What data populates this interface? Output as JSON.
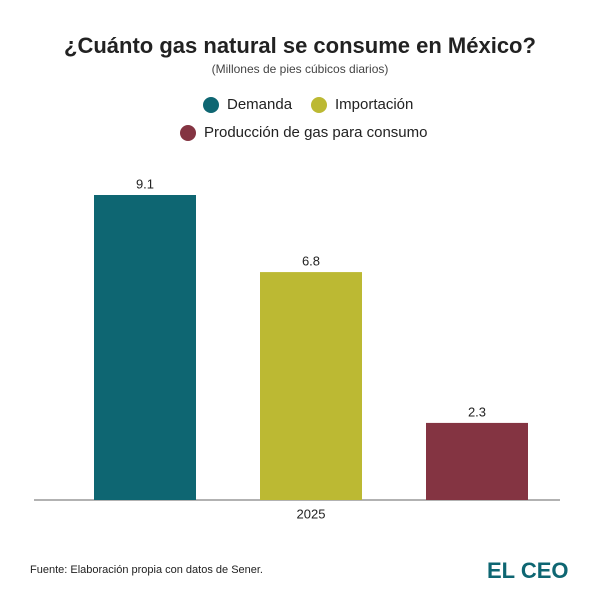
{
  "chart_data": {
    "type": "bar",
    "title": "¿Cuánto gas natural se consume en México?",
    "subtitle": "(Millones de pies cúbicos diarios)",
    "categories": [
      "2025"
    ],
    "series": [
      {
        "name": "Demanda",
        "color": "#0e6672",
        "values": [
          9.1
        ]
      },
      {
        "name": "Importación",
        "color": "#bcb933",
        "values": [
          6.8
        ]
      },
      {
        "name": "Producción de gas para consumo",
        "color": "#843442",
        "values": [
          2.3
        ]
      }
    ],
    "source": "Fuente: Elaboración propia con datos de Sener.",
    "logo": "EL CEO"
  }
}
